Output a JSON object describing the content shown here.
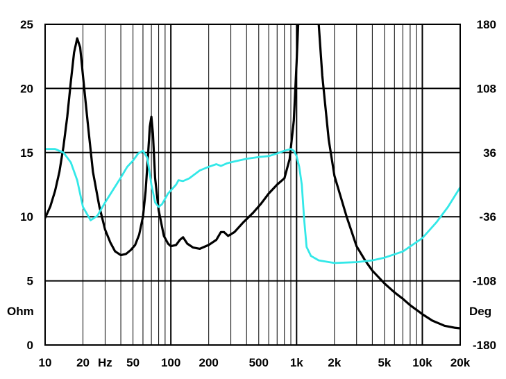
{
  "chart_data": {
    "type": "line",
    "x_scale": "log",
    "xlim": [
      10,
      20000
    ],
    "ylim_left": [
      0,
      25
    ],
    "ylim_right": [
      -180,
      180
    ],
    "grid": true,
    "ylabel_left": "Ohm",
    "ylabel_right": "Deg",
    "x_ticks": [
      {
        "v": 10,
        "label": "10"
      },
      {
        "v": 20,
        "label": "20"
      },
      {
        "v": 30,
        "label": "Hz"
      },
      {
        "v": 50,
        "label": "50"
      },
      {
        "v": 100,
        "label": "100"
      },
      {
        "v": 200,
        "label": "200"
      },
      {
        "v": 500,
        "label": "500"
      },
      {
        "v": 1000,
        "label": "1k"
      },
      {
        "v": 2000,
        "label": "2k"
      },
      {
        "v": 5000,
        "label": "5k"
      },
      {
        "v": 10000,
        "label": "10k"
      },
      {
        "v": 20000,
        "label": "20k"
      }
    ],
    "y_left_ticks": [
      "0",
      "5",
      "10",
      "15",
      "20",
      "25"
    ],
    "y_right_ticks": [
      "-180",
      "-108",
      "-36",
      "36",
      "108",
      "180"
    ],
    "series": [
      {
        "axis": "left",
        "color": "#000000",
        "points": [
          [
            10,
            9.9
          ],
          [
            11,
            10.8
          ],
          [
            12,
            12
          ],
          [
            13,
            13.5
          ],
          [
            14,
            15.5
          ],
          [
            15,
            17.8
          ],
          [
            16,
            20.5
          ],
          [
            17,
            22.8
          ],
          [
            18,
            23.9
          ],
          [
            19,
            23.2
          ],
          [
            20,
            21
          ],
          [
            22,
            17
          ],
          [
            24,
            13.5
          ],
          [
            27,
            10.8
          ],
          [
            30,
            9
          ],
          [
            33,
            8
          ],
          [
            36,
            7.3
          ],
          [
            40,
            7
          ],
          [
            44,
            7.1
          ],
          [
            48,
            7.4
          ],
          [
            52,
            7.8
          ],
          [
            56,
            8.6
          ],
          [
            60,
            10
          ],
          [
            63,
            12
          ],
          [
            66,
            15
          ],
          [
            68,
            17
          ],
          [
            70,
            17.8
          ],
          [
            72,
            16.5
          ],
          [
            75,
            13
          ],
          [
            80,
            10.5
          ],
          [
            88,
            8.5
          ],
          [
            95,
            7.9
          ],
          [
            100,
            7.7
          ],
          [
            110,
            7.8
          ],
          [
            118,
            8.2
          ],
          [
            125,
            8.4
          ],
          [
            135,
            7.9
          ],
          [
            150,
            7.6
          ],
          [
            170,
            7.5
          ],
          [
            200,
            7.8
          ],
          [
            230,
            8.2
          ],
          [
            250,
            8.8
          ],
          [
            265,
            8.8
          ],
          [
            285,
            8.5
          ],
          [
            320,
            8.8
          ],
          [
            380,
            9.6
          ],
          [
            450,
            10.3
          ],
          [
            520,
            11
          ],
          [
            600,
            11.8
          ],
          [
            700,
            12.5
          ],
          [
            800,
            13
          ],
          [
            880,
            14.5
          ],
          [
            950,
            17.5
          ],
          [
            1000,
            22
          ],
          [
            1030,
            25
          ],
          [
            1200,
            40
          ],
          [
            1400,
            28
          ],
          [
            1500,
            25
          ],
          [
            1600,
            21
          ],
          [
            1800,
            16
          ],
          [
            2000,
            13.2
          ],
          [
            2500,
            10
          ],
          [
            3000,
            7.7
          ],
          [
            3500,
            6.6
          ],
          [
            4000,
            5.8
          ],
          [
            5000,
            4.8
          ],
          [
            6000,
            4.1
          ],
          [
            7000,
            3.6
          ],
          [
            8000,
            3.1
          ],
          [
            10000,
            2.4
          ],
          [
            12000,
            1.9
          ],
          [
            15000,
            1.5
          ],
          [
            18000,
            1.35
          ],
          [
            20000,
            1.3
          ]
        ]
      },
      {
        "axis": "right",
        "color": "#33e8e8",
        "points": [
          [
            10,
            40
          ],
          [
            12,
            40
          ],
          [
            14,
            36
          ],
          [
            16,
            25
          ],
          [
            18,
            5
          ],
          [
            20,
            -25
          ],
          [
            23,
            -40
          ],
          [
            26,
            -35
          ],
          [
            30,
            -20
          ],
          [
            35,
            -5
          ],
          [
            40,
            8
          ],
          [
            45,
            20
          ],
          [
            50,
            27
          ],
          [
            55,
            35
          ],
          [
            60,
            38
          ],
          [
            65,
            30
          ],
          [
            70,
            0
          ],
          [
            75,
            -20
          ],
          [
            80,
            -25
          ],
          [
            85,
            -22
          ],
          [
            95,
            -10
          ],
          [
            110,
            0
          ],
          [
            115,
            5
          ],
          [
            125,
            4
          ],
          [
            140,
            7
          ],
          [
            170,
            16
          ],
          [
            200,
            20
          ],
          [
            230,
            23
          ],
          [
            250,
            21
          ],
          [
            280,
            24
          ],
          [
            320,
            26
          ],
          [
            400,
            29
          ],
          [
            500,
            31
          ],
          [
            600,
            32
          ],
          [
            700,
            35
          ],
          [
            800,
            38
          ],
          [
            900,
            40
          ],
          [
            950,
            38
          ],
          [
            1000,
            32
          ],
          [
            1050,
            20
          ],
          [
            1100,
            0
          ],
          [
            1150,
            -40
          ],
          [
            1200,
            -70
          ],
          [
            1300,
            -80
          ],
          [
            1500,
            -85
          ],
          [
            2000,
            -88
          ],
          [
            3000,
            -87
          ],
          [
            4000,
            -85
          ],
          [
            5000,
            -82
          ],
          [
            7000,
            -75
          ],
          [
            10000,
            -60
          ],
          [
            13000,
            -42
          ],
          [
            16000,
            -25
          ],
          [
            20000,
            -3
          ]
        ]
      }
    ]
  }
}
